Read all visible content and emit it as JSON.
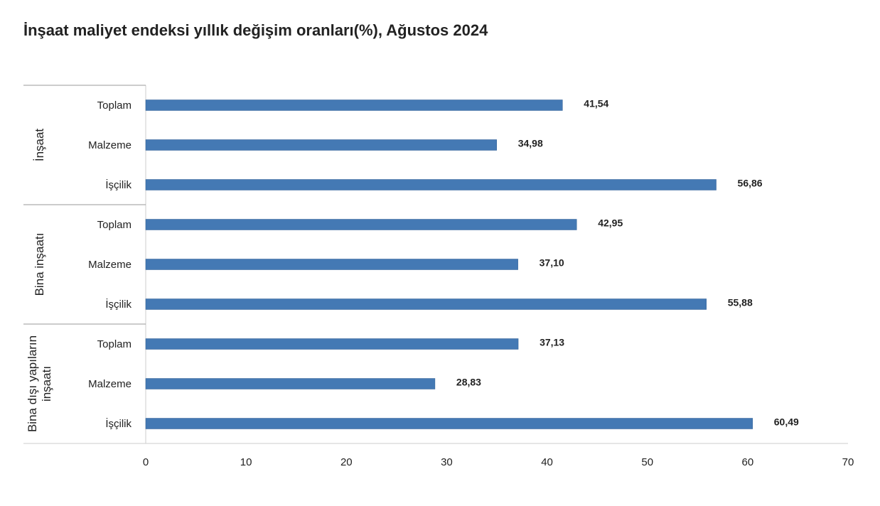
{
  "chart_data": {
    "type": "bar",
    "orientation": "horizontal",
    "title": "İnşaat maliyet endeksi yıllık değişim oranları(%), Ağustos 2024",
    "color": "#4479b4",
    "groups": [
      {
        "name": "İnşaat",
        "categories": [
          "Toplam",
          "Malzeme",
          "İşçilik"
        ],
        "values": [
          41.54,
          34.98,
          56.86
        ],
        "value_labels": [
          "41,54",
          "34,98",
          "56,86"
        ]
      },
      {
        "name": "Bina inşaatı",
        "categories": [
          "Toplam",
          "Malzeme",
          "İşçilik"
        ],
        "values": [
          42.95,
          37.1,
          55.88
        ],
        "value_labels": [
          "42,95",
          "37,10",
          "55,88"
        ]
      },
      {
        "name": "Bina dışı yapıların inşaatı",
        "categories": [
          "Toplam",
          "Malzeme",
          "İşçilik"
        ],
        "values": [
          37.13,
          28.83,
          60.49
        ],
        "value_labels": [
          "37,13",
          "28,83",
          "60,49"
        ]
      }
    ],
    "xlim": [
      0,
      70
    ],
    "xticks": [
      0,
      10,
      20,
      30,
      40,
      50,
      60,
      70
    ]
  }
}
